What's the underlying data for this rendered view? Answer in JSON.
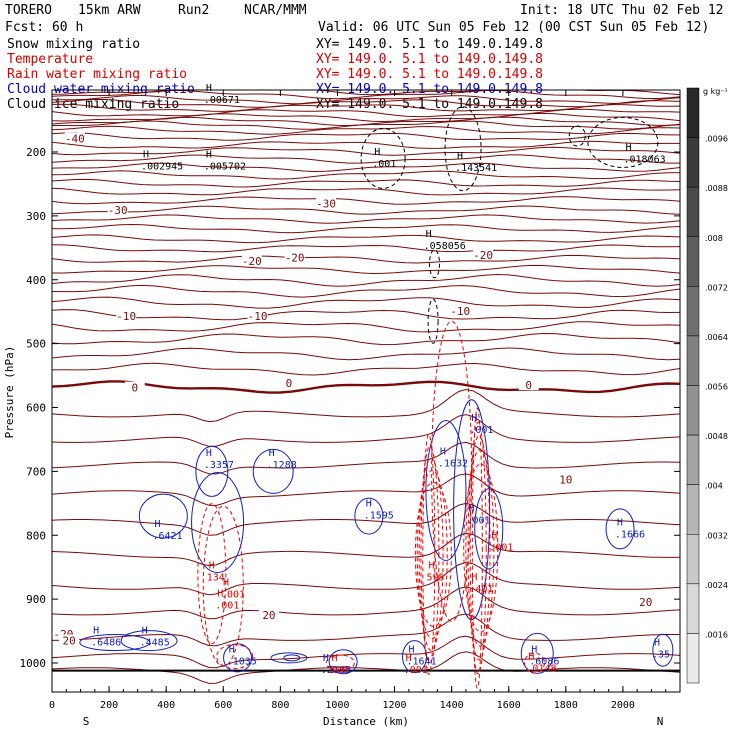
{
  "header": {
    "model": "TORERO",
    "res": "15km ARW",
    "run": "Run2",
    "org": "NCAR/MMM",
    "init": "Init: 18 UTC Thu 02 Feb 12",
    "fcst": "Fcst:   60 h",
    "valid": "Valid: 06 UTC Sun 05 Feb 12 (00 CST Sun 05 Feb 12)"
  },
  "fields": [
    {
      "name": "Snow mixing ratio",
      "xy": "XY= 149.0.  5.1 to 149.0.149.8",
      "color": "#000000"
    },
    {
      "name": "Temperature",
      "xy": "XY= 149.0.  5.1 to 149.0.149.8",
      "color": "#cc0000"
    },
    {
      "name": "Rain water mixing ratio",
      "xy": "XY= 149.0.  5.1 to 149.0.149.8",
      "color": "#dd0000"
    },
    {
      "name": "Cloud water mixing ratio",
      "xy": "XY= 149.0.  5.1 to 149.0.149.8",
      "color": "#0000cc"
    },
    {
      "name": "Cloud ice mixing ratio",
      "xy": "XY= 149.0.  5.1 to 149.0.149.8",
      "color": "#000000"
    }
  ],
  "colors": {
    "temperature": "#7a0a0a",
    "freezing": "#7a0a0a",
    "rain": "#ee0000",
    "cloud_water": "#1020c0",
    "ice": "#000000"
  },
  "chart_data": {
    "type": "contour",
    "xlabel": "Distance (km)",
    "ylabel": "Pressure (hPa)",
    "xlim": [
      0,
      2200
    ],
    "ylim": [
      1050,
      90
    ],
    "x_ticks": [
      "0",
      "200",
      "400",
      "600",
      "800",
      "1000",
      "1200",
      "1400",
      "1600",
      "1800",
      "2000"
    ],
    "x_tick_values": [
      0,
      200,
      400,
      600,
      800,
      1000,
      1200,
      1400,
      1600,
      1800,
      2000
    ],
    "y_ticks": [
      "200",
      "300",
      "400",
      "500",
      "600",
      "700",
      "800",
      "900",
      "1000"
    ],
    "y_tick_values": [
      200,
      300,
      400,
      500,
      600,
      700,
      800,
      900,
      1000
    ],
    "direction_labels": {
      "left": "S",
      "right": "N"
    },
    "grid": false,
    "temperature_contours": [
      {
        "label": "-40",
        "p": 180
      },
      {
        "label": "-30",
        "p": 290
      },
      {
        "label": "-20",
        "p": 370
      },
      {
        "label": "-10",
        "p": 460
      },
      {
        "label": "0",
        "p": 568
      },
      {
        "label": "10",
        "p": 735
      },
      {
        "label": "20",
        "p": 920
      }
    ],
    "temperature_labels": [
      {
        "text": "-40",
        "x": 80,
        "p": 182
      },
      {
        "text": "-30",
        "x": 230,
        "p": 294
      },
      {
        "text": "-30",
        "x": 960,
        "p": 284
      },
      {
        "text": "-20",
        "x": 700,
        "p": 374
      },
      {
        "text": "-20",
        "x": 850,
        "p": 368
      },
      {
        "text": "-20",
        "x": 1510,
        "p": 364
      },
      {
        "text": "-10",
        "x": 260,
        "p": 460
      },
      {
        "text": "-10",
        "x": 720,
        "p": 460
      },
      {
        "text": "-10",
        "x": 1430,
        "p": 452
      },
      {
        "text": "0",
        "x": 290,
        "p": 572
      },
      {
        "text": "0",
        "x": 830,
        "p": 565
      },
      {
        "text": "0",
        "x": 1670,
        "p": 568
      },
      {
        "text": "10",
        "x": 1800,
        "p": 716
      },
      {
        "text": "20",
        "x": 760,
        "p": 928
      },
      {
        "text": "20",
        "x": 2080,
        "p": 908
      },
      {
        "text": "-20",
        "x": 40,
        "p": 958
      },
      {
        "text": "20",
        "x": 60,
        "p": 968
      }
    ],
    "max_labels": [
      {
        "text": ".002945",
        "x": 340,
        "p": 226,
        "color": "#000000"
      },
      {
        "text": ".005702",
        "x": 560,
        "p": 226,
        "color": "#000000"
      },
      {
        "text": ".00671",
        "x": 560,
        "p": 122,
        "color": "#000000"
      },
      {
        "text": ".001",
        "x": 1150,
        "p": 222,
        "color": "#000000"
      },
      {
        "text": ".143541",
        "x": 1440,
        "p": 228,
        "color": "#000000"
      },
      {
        "text": ".058056",
        "x": 1330,
        "p": 350,
        "color": "#000000"
      },
      {
        "text": ".018063",
        "x": 2030,
        "p": 215,
        "color": "#000000"
      },
      {
        "text": ".3357",
        "x": 560,
        "p": 693,
        "color": "#1020c0"
      },
      {
        "text": ".1288",
        "x": 780,
        "p": 693,
        "color": "#1020c0"
      },
      {
        "text": ".1595",
        "x": 1120,
        "p": 772,
        "color": "#1020c0"
      },
      {
        "text": ".6421",
        "x": 380,
        "p": 804,
        "color": "#1020c0"
      },
      {
        "text": ".1632",
        "x": 1380,
        "p": 691,
        "color": "#1020c0"
      },
      {
        "text": ".1666",
        "x": 2000,
        "p": 802,
        "color": "#1020c0"
      },
      {
        "text": ".6486",
        "x": 165,
        "p": 971,
        "color": "#1020c0"
      },
      {
        "text": ".4485",
        "x": 335,
        "p": 971,
        "color": "#1020c0"
      },
      {
        "text": ".1035",
        "x": 640,
        "p": 1001,
        "color": "#1020c0"
      },
      {
        "text": ".2185",
        "x": 970,
        "p": 1014,
        "color": "#1020c0"
      },
      {
        "text": ".1641",
        "x": 1270,
        "p": 1001,
        "color": "#1020c0"
      },
      {
        "text": ".6086",
        "x": 1700,
        "p": 1001,
        "color": "#1020c0"
      },
      {
        "text": ".35",
        "x": 2130,
        "p": 990,
        "color": "#1020c0"
      },
      {
        "text": "134",
        "x": 570,
        "p": 869,
        "color": "#dd0000"
      },
      {
        "text": ".001",
        "x": 620,
        "p": 896,
        "color": "#dd0000"
      },
      {
        "text": ".001",
        "x": 600,
        "p": 913,
        "color": "#dd0000"
      },
      {
        "text": "595",
        "x": 1340,
        "p": 869,
        "color": "#dd0000"
      },
      {
        "text": ".401",
        "x": 1490,
        "p": 887,
        "color": "#dd0000"
      },
      {
        "text": ".001",
        "x": 1560,
        "p": 822,
        "color": "#dd0000"
      },
      {
        "text": ".001",
        "x": 1260,
        "p": 1014,
        "color": "#dd0000"
      },
      {
        "text": ".0148",
        "x": 1690,
        "p": 1012,
        "color": "#dd0000"
      },
      {
        "text": "500",
        "x": 1000,
        "p": 1014,
        "color": "#dd0000"
      },
      {
        "text": ".001",
        "x": 1490,
        "p": 638,
        "color": "#1020c0"
      },
      {
        "text": ".001",
        "x": 1480,
        "p": 780,
        "color": "#1020c0"
      }
    ],
    "colorbar": {
      "unit": "g kg⁻¹",
      "ticks": [
        ".0096",
        ".0088",
        ".008",
        ".0072",
        ".0064",
        ".0056",
        ".0048",
        ".004",
        ".0032",
        ".0024",
        ".0016"
      ]
    }
  }
}
